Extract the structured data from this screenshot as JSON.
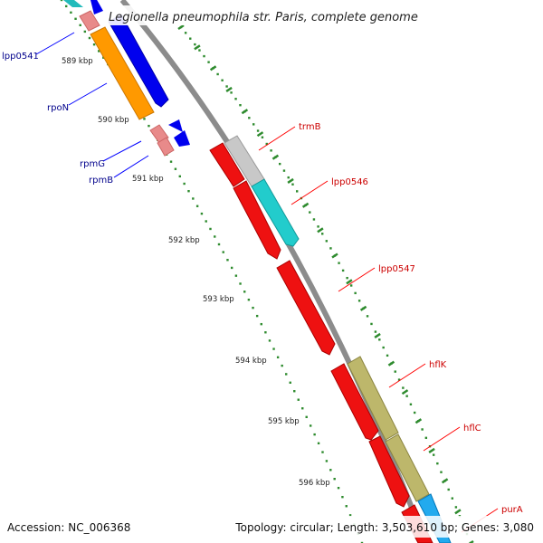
{
  "title": "Legionella pneumophila str. Paris, complete genome",
  "footer": {
    "accession": "Accession: NC_006368",
    "summary": "Topology: circular; Length: 3,503,610 bp; Genes: 3,080"
  },
  "colors": {
    "backbone": "#8c8c8c",
    "dots": "#2e8b2e",
    "ticks": "#2e8b2e",
    "label_minus": "#00008b",
    "label_plus": "#cc0000",
    "label_line_minus": "#0000ff",
    "label_line_plus": "#ff0000"
  },
  "scale_ticks": [
    "589 kbp",
    "590 kbp",
    "591 kbp",
    "592 kbp",
    "593 kbp",
    "594 kbp",
    "595 kbp",
    "596 kbp"
  ],
  "features": [
    {
      "name": "lpp0541",
      "strand": "minus",
      "color": "#e88a8a"
    },
    {
      "name": "rpoN",
      "strand": "minus",
      "color": "#ff9900"
    },
    {
      "name": "rpmG",
      "strand": "minus",
      "color": "#e88a8a"
    },
    {
      "name": "rpmB",
      "strand": "minus",
      "color": "#e88a8a"
    },
    {
      "name": "trmB",
      "strand": "plus",
      "color": "#c0c0c0"
    },
    {
      "name": "lpp0546",
      "strand": "plus",
      "color": "#22cccc"
    },
    {
      "name": "lpp0547",
      "strand": "plus",
      "color": "#ee1111"
    },
    {
      "name": "hflK",
      "strand": "plus",
      "color": "#bdb76b"
    },
    {
      "name": "hflC",
      "strand": "plus",
      "color": "#bdb76b"
    },
    {
      "name": "purA",
      "strand": "plus",
      "color": "#22aaee"
    }
  ]
}
